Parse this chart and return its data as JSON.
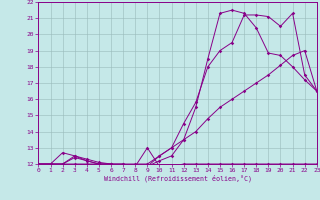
{
  "bg_color": "#c5e8e8",
  "line_color": "#880088",
  "grid_color": "#99bbbb",
  "xlabel": "Windchill (Refroidissement éolien,°C)",
  "xlim": [
    0,
    23
  ],
  "ylim": [
    12,
    22
  ],
  "xticks": [
    0,
    1,
    2,
    3,
    4,
    5,
    6,
    7,
    8,
    9,
    10,
    11,
    12,
    13,
    14,
    15,
    16,
    17,
    18,
    19,
    20,
    21,
    22,
    23
  ],
  "yticks": [
    12,
    13,
    14,
    15,
    16,
    17,
    18,
    19,
    20,
    21,
    22
  ],
  "lines": [
    {
      "x": [
        0,
        1,
        2,
        3,
        4,
        5,
        6,
        7,
        8,
        9,
        10,
        11,
        12,
        13,
        14,
        15,
        16,
        17,
        18,
        19,
        20,
        21,
        22,
        23
      ],
      "y": [
        12.0,
        12.0,
        12.0,
        12.4,
        12.2,
        12.0,
        12.0,
        11.85,
        11.85,
        13.0,
        11.85,
        11.85,
        12.0,
        12.0,
        12.0,
        12.0,
        12.0,
        12.0,
        12.0,
        12.0,
        12.0,
        12.0,
        12.0,
        12.0
      ]
    },
    {
      "x": [
        0,
        1,
        2,
        3,
        4,
        5,
        6,
        7,
        8,
        9,
        10,
        11,
        12,
        13,
        14,
        15,
        16,
        17,
        18,
        19,
        20,
        21,
        22,
        23
      ],
      "y": [
        12.0,
        12.0,
        12.7,
        12.5,
        12.2,
        12.0,
        12.0,
        11.85,
        11.85,
        11.85,
        12.5,
        13.0,
        14.5,
        15.8,
        18.0,
        19.0,
        19.5,
        21.2,
        21.2,
        21.1,
        20.5,
        21.3,
        17.5,
        16.5
      ]
    },
    {
      "x": [
        0,
        1,
        2,
        3,
        4,
        5,
        6,
        7,
        8,
        9,
        10,
        11,
        12,
        13,
        14,
        15,
        16,
        17,
        18,
        19,
        20,
        21,
        22,
        23
      ],
      "y": [
        12.0,
        12.0,
        12.0,
        12.5,
        12.3,
        12.1,
        12.0,
        12.0,
        11.85,
        11.85,
        12.2,
        12.5,
        13.5,
        15.5,
        18.5,
        21.3,
        21.5,
        21.3,
        20.4,
        18.85,
        18.7,
        18.0,
        17.2,
        16.5
      ]
    },
    {
      "x": [
        0,
        1,
        2,
        3,
        4,
        5,
        6,
        7,
        8,
        9,
        10,
        11,
        12,
        13,
        14,
        15,
        16,
        17,
        18,
        19,
        20,
        21,
        22,
        23
      ],
      "y": [
        12.0,
        12.0,
        12.0,
        12.0,
        12.0,
        12.0,
        12.0,
        12.0,
        12.0,
        12.0,
        12.5,
        13.0,
        13.5,
        14.0,
        14.8,
        15.5,
        16.0,
        16.5,
        17.0,
        17.5,
        18.1,
        18.7,
        19.0,
        16.5
      ]
    }
  ]
}
